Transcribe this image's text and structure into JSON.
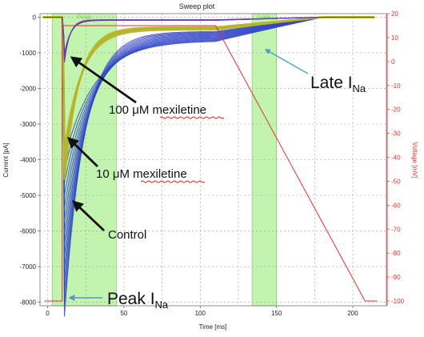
{
  "chart_data": {
    "type": "line",
    "title": "Sweep plot",
    "xlabel": "Time [ms]",
    "ylabel": "Current [pA]",
    "y2label": "Voltage [mV]",
    "xlim": [
      -5,
      222
    ],
    "ylim": [
      -8100,
      100
    ],
    "y2lim": [
      -102,
      20
    ],
    "x_ticks": [
      0,
      50,
      100,
      150,
      200
    ],
    "y_ticks": [
      0,
      -1000,
      -2000,
      -3000,
      -4000,
      -5000,
      -6000,
      -7000,
      -8000
    ],
    "y2_ticks": [
      20,
      10,
      0,
      -10,
      -20,
      -30,
      -40,
      -50,
      -60,
      -70,
      -80,
      -90,
      -100
    ],
    "grid": true,
    "windows": [
      {
        "label": "Peak",
        "x0": 3,
        "x1": 45,
        "color": "#b9f2a1"
      },
      {
        "label": "Late",
        "x0": 134,
        "x1": 150,
        "color": "#b9f2a1"
      }
    ],
    "voltage_protocol": {
      "color": "#e03030",
      "points": [
        [
          -2,
          -100
        ],
        [
          9.5,
          -100
        ],
        [
          9.5,
          15
        ],
        [
          110,
          15
        ],
        [
          208,
          -100
        ],
        [
          216,
          -100
        ]
      ]
    },
    "series": [
      {
        "color": "#3346c8",
        "peak": -8000,
        "tau": 13,
        "late": -500,
        "count": 14
      },
      {
        "color": "#b5b52c",
        "peak": -4300,
        "tau": 9.5,
        "late": -350,
        "count": 6
      },
      {
        "color": "#6a38b0",
        "peak": -1200,
        "tau": 3.5,
        "late": -90,
        "count": 6
      }
    ],
    "annotations": [
      {
        "text": "100 μM mexiletine",
        "squiggle": "mexiletine"
      },
      {
        "text": "10 μM mexiletine",
        "squiggle": "mexiletine"
      },
      {
        "text": "Control"
      },
      {
        "text": "Peak I",
        "sub": "Na"
      },
      {
        "text": "Late I",
        "sub": "Na"
      }
    ]
  }
}
